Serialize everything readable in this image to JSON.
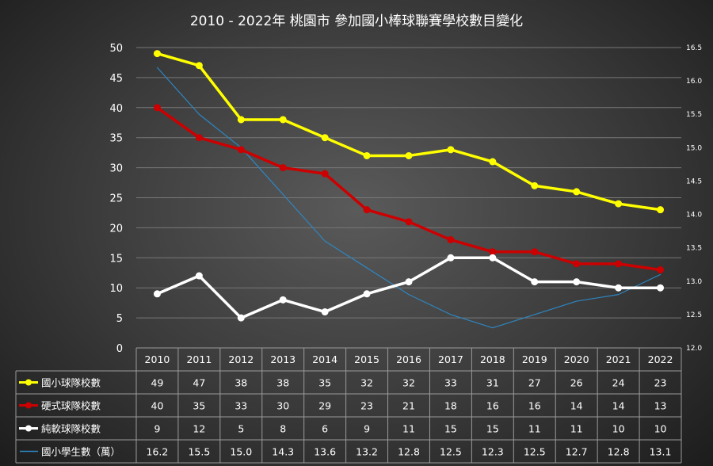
{
  "chart_data": {
    "type": "line",
    "title": "2010 - 2022年 桃園市 參加國小棒球聯賽學校數目變化",
    "categories": [
      "2010",
      "2011",
      "2012",
      "2013",
      "2014",
      "2015",
      "2016",
      "2017",
      "2018",
      "2019",
      "2020",
      "2021",
      "2022"
    ],
    "ylim": [
      0,
      50
    ],
    "yticks": [
      0,
      5,
      10,
      15,
      20,
      25,
      30,
      35,
      40,
      45,
      50
    ],
    "y2lim": [
      12.0,
      16.5
    ],
    "y2ticks": [
      "12.0",
      "12.5",
      "13.0",
      "13.5",
      "14.0",
      "14.5",
      "15.0",
      "15.5",
      "16.0",
      "16.5"
    ],
    "grid": true,
    "series": [
      {
        "name": "國小球隊校數",
        "axis": "left",
        "color": "#ffff00",
        "marker": "circle",
        "values": [
          49,
          47,
          38,
          38,
          35,
          32,
          32,
          33,
          31,
          27,
          26,
          24,
          23
        ]
      },
      {
        "name": "硬式球隊校數",
        "axis": "left",
        "color": "#cc0000",
        "marker": "circle",
        "values": [
          40,
          35,
          33,
          30,
          29,
          23,
          21,
          18,
          16,
          16,
          14,
          14,
          13
        ]
      },
      {
        "name": "純軟球隊校數",
        "axis": "left",
        "color": "#ffffff",
        "marker": "circle",
        "values": [
          9,
          12,
          5,
          8,
          6,
          9,
          11,
          15,
          15,
          11,
          11,
          10,
          10
        ]
      },
      {
        "name": "國小學生數（萬）",
        "axis": "right",
        "color": "#2e86c1",
        "marker": "none",
        "values": [
          16.2,
          15.5,
          15.0,
          14.3,
          13.6,
          13.2,
          12.8,
          12.5,
          12.3,
          12.5,
          12.7,
          12.8,
          13.1
        ],
        "labels": [
          "16.2",
          "15.5",
          "15.0",
          "14.3",
          "13.6",
          "13.2",
          "12.8",
          "12.5",
          "12.3",
          "12.5",
          "12.7",
          "12.8",
          "13.1"
        ]
      }
    ]
  }
}
